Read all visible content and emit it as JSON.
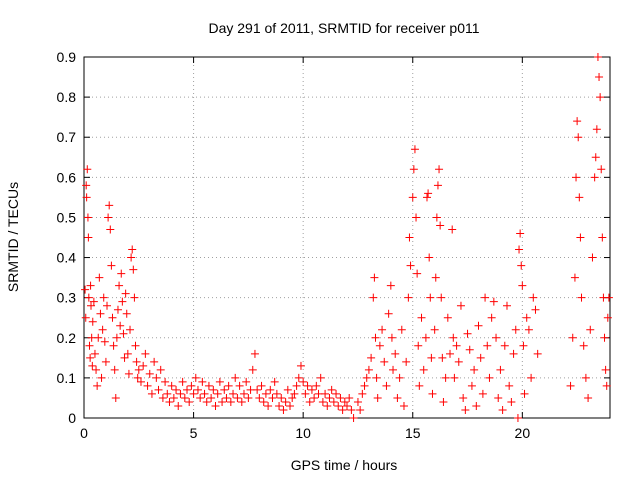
{
  "chart_data": {
    "type": "scatter",
    "title": "Day 291 of 2011, SRMTID for receiver p011",
    "xlabel": "GPS time / hours",
    "ylabel": "SRMTID / TECUs",
    "xlim": [
      0,
      24
    ],
    "ylim": [
      0,
      0.9
    ],
    "xticks": [
      0,
      5,
      10,
      15,
      20
    ],
    "yticks": [
      0,
      0.1,
      0.2,
      0.3,
      0.4,
      0.5,
      0.6,
      0.7,
      0.8,
      0.9
    ],
    "grid": true,
    "marker": "plus",
    "color": "#ff0000",
    "series": [
      {
        "name": "SRMTID",
        "points": [
          [
            0.05,
            0.32
          ],
          [
            0.08,
            0.25
          ],
          [
            0.1,
            0.58
          ],
          [
            0.12,
            0.55
          ],
          [
            0.15,
            0.62
          ],
          [
            0.18,
            0.5
          ],
          [
            0.2,
            0.45
          ],
          [
            0.22,
            0.3
          ],
          [
            0.25,
            0.18
          ],
          [
            0.28,
            0.15
          ],
          [
            0.3,
            0.33
          ],
          [
            0.32,
            0.28
          ],
          [
            0.35,
            0.2
          ],
          [
            0.38,
            0.13
          ],
          [
            0.4,
            0.24
          ],
          [
            0.45,
            0.29
          ],
          [
            0.5,
            0.16
          ],
          [
            0.55,
            0.12
          ],
          [
            0.6,
            0.08
          ],
          [
            0.65,
            0.2
          ],
          [
            0.7,
            0.35
          ],
          [
            0.75,
            0.26
          ],
          [
            0.8,
            0.1
          ],
          [
            0.85,
            0.22
          ],
          [
            0.9,
            0.3
          ],
          [
            0.95,
            0.19
          ],
          [
            1.0,
            0.14
          ],
          [
            1.05,
            0.28
          ],
          [
            1.1,
            0.5
          ],
          [
            1.15,
            0.53
          ],
          [
            1.2,
            0.47
          ],
          [
            1.25,
            0.38
          ],
          [
            1.3,
            0.25
          ],
          [
            1.35,
            0.18
          ],
          [
            1.4,
            0.12
          ],
          [
            1.45,
            0.05
          ],
          [
            1.5,
            0.2
          ],
          [
            1.55,
            0.27
          ],
          [
            1.6,
            0.33
          ],
          [
            1.65,
            0.23
          ],
          [
            1.7,
            0.36
          ],
          [
            1.75,
            0.29
          ],
          [
            1.8,
            0.21
          ],
          [
            1.85,
            0.15
          ],
          [
            1.9,
            0.31
          ],
          [
            1.95,
            0.26
          ],
          [
            2.0,
            0.16
          ],
          [
            2.05,
            0.11
          ],
          [
            2.1,
            0.22
          ],
          [
            2.15,
            0.4
          ],
          [
            2.2,
            0.42
          ],
          [
            2.25,
            0.37
          ],
          [
            2.3,
            0.3
          ],
          [
            2.35,
            0.18
          ],
          [
            2.4,
            0.14
          ],
          [
            2.45,
            0.1
          ],
          [
            2.5,
            0.12
          ],
          [
            2.6,
            0.09
          ],
          [
            2.7,
            0.13
          ],
          [
            2.8,
            0.16
          ],
          [
            2.9,
            0.08
          ],
          [
            3.0,
            0.11
          ],
          [
            3.1,
            0.06
          ],
          [
            3.2,
            0.14
          ],
          [
            3.3,
            0.1
          ],
          [
            3.4,
            0.07
          ],
          [
            3.5,
            0.12
          ],
          [
            3.6,
            0.05
          ],
          [
            3.7,
            0.09
          ],
          [
            3.8,
            0.06
          ],
          [
            3.9,
            0.04
          ],
          [
            4.0,
            0.08
          ],
          [
            4.1,
            0.05
          ],
          [
            4.2,
            0.07
          ],
          [
            4.3,
            0.03
          ],
          [
            4.4,
            0.06
          ],
          [
            4.5,
            0.09
          ],
          [
            4.6,
            0.05
          ],
          [
            4.7,
            0.07
          ],
          [
            4.8,
            0.04
          ],
          [
            4.9,
            0.08
          ],
          [
            5.0,
            0.06
          ],
          [
            5.1,
            0.1
          ],
          [
            5.2,
            0.07
          ],
          [
            5.3,
            0.05
          ],
          [
            5.4,
            0.09
          ],
          [
            5.5,
            0.06
          ],
          [
            5.6,
            0.04
          ],
          [
            5.7,
            0.08
          ],
          [
            5.8,
            0.05
          ],
          [
            5.9,
            0.07
          ],
          [
            6.0,
            0.03
          ],
          [
            6.1,
            0.06
          ],
          [
            6.2,
            0.09
          ],
          [
            6.3,
            0.04
          ],
          [
            6.4,
            0.07
          ],
          [
            6.5,
            0.05
          ],
          [
            6.6,
            0.08
          ],
          [
            6.7,
            0.04
          ],
          [
            6.8,
            0.06
          ],
          [
            6.9,
            0.1
          ],
          [
            7.0,
            0.05
          ],
          [
            7.1,
            0.08
          ],
          [
            7.2,
            0.04
          ],
          [
            7.3,
            0.06
          ],
          [
            7.4,
            0.09
          ],
          [
            7.5,
            0.05
          ],
          [
            7.6,
            0.07
          ],
          [
            7.7,
            0.12
          ],
          [
            7.8,
            0.16
          ],
          [
            7.9,
            0.07
          ],
          [
            8.0,
            0.05
          ],
          [
            8.1,
            0.08
          ],
          [
            8.2,
            0.04
          ],
          [
            8.3,
            0.06
          ],
          [
            8.4,
            0.03
          ],
          [
            8.5,
            0.07
          ],
          [
            8.6,
            0.05
          ],
          [
            8.7,
            0.09
          ],
          [
            8.8,
            0.06
          ],
          [
            8.9,
            0.03
          ],
          [
            9.0,
            0.05
          ],
          [
            9.1,
            0.02
          ],
          [
            9.2,
            0.04
          ],
          [
            9.3,
            0.07
          ],
          [
            9.4,
            0.03
          ],
          [
            9.5,
            0.05
          ],
          [
            9.6,
            0.06
          ],
          [
            9.7,
            0.08
          ],
          [
            9.8,
            0.1
          ],
          [
            9.9,
            0.13
          ],
          [
            10.0,
            0.09
          ],
          [
            10.1,
            0.06
          ],
          [
            10.2,
            0.08
          ],
          [
            10.3,
            0.04
          ],
          [
            10.4,
            0.07
          ],
          [
            10.5,
            0.05
          ],
          [
            10.6,
            0.08
          ],
          [
            10.7,
            0.06
          ],
          [
            10.8,
            0.1
          ],
          [
            10.9,
            0.04
          ],
          [
            11.0,
            0.06
          ],
          [
            11.1,
            0.03
          ],
          [
            11.2,
            0.05
          ],
          [
            11.3,
            0.07
          ],
          [
            11.4,
            0.04
          ],
          [
            11.5,
            0.06
          ],
          [
            11.6,
            0.03
          ],
          [
            11.7,
            0.05
          ],
          [
            11.8,
            0.02
          ],
          [
            11.9,
            0.04
          ],
          [
            12.0,
            0.03
          ],
          [
            12.1,
            0.05
          ],
          [
            12.2,
            0.02
          ],
          [
            12.3,
            0.0
          ],
          [
            12.5,
            0.04
          ],
          [
            12.6,
            0.02
          ],
          [
            12.7,
            0.06
          ],
          [
            12.8,
            0.08
          ],
          [
            12.9,
            0.1
          ],
          [
            13.0,
            0.12
          ],
          [
            13.1,
            0.15
          ],
          [
            13.2,
            0.3
          ],
          [
            13.25,
            0.35
          ],
          [
            13.3,
            0.2
          ],
          [
            13.35,
            0.1
          ],
          [
            13.4,
            0.05
          ],
          [
            13.5,
            0.18
          ],
          [
            13.6,
            0.22
          ],
          [
            13.7,
            0.14
          ],
          [
            13.8,
            0.08
          ],
          [
            13.9,
            0.26
          ],
          [
            14.0,
            0.33
          ],
          [
            14.05,
            0.2
          ],
          [
            14.1,
            0.12
          ],
          [
            14.2,
            0.16
          ],
          [
            14.3,
            0.05
          ],
          [
            14.4,
            0.1
          ],
          [
            14.5,
            0.22
          ],
          [
            14.6,
            0.03
          ],
          [
            14.7,
            0.14
          ],
          [
            14.8,
            0.3
          ],
          [
            14.85,
            0.45
          ],
          [
            14.9,
            0.38
          ],
          [
            15.0,
            0.55
          ],
          [
            15.05,
            0.62
          ],
          [
            15.1,
            0.67
          ],
          [
            15.15,
            0.5
          ],
          [
            15.2,
            0.36
          ],
          [
            15.25,
            0.18
          ],
          [
            15.3,
            0.08
          ],
          [
            15.4,
            0.25
          ],
          [
            15.5,
            0.12
          ],
          [
            15.6,
            0.2
          ],
          [
            15.65,
            0.55
          ],
          [
            15.7,
            0.56
          ],
          [
            15.75,
            0.4
          ],
          [
            15.8,
            0.3
          ],
          [
            15.85,
            0.15
          ],
          [
            15.9,
            0.06
          ],
          [
            16.0,
            0.22
          ],
          [
            16.05,
            0.35
          ],
          [
            16.1,
            0.5
          ],
          [
            16.15,
            0.58
          ],
          [
            16.2,
            0.62
          ],
          [
            16.25,
            0.48
          ],
          [
            16.3,
            0.3
          ],
          [
            16.35,
            0.15
          ],
          [
            16.4,
            0.04
          ],
          [
            16.5,
            0.1
          ],
          [
            16.6,
            0.25
          ],
          [
            16.7,
            0.16
          ],
          [
            16.8,
            0.47
          ],
          [
            16.85,
            0.2
          ],
          [
            16.9,
            0.1
          ],
          [
            17.0,
            0.18
          ],
          [
            17.1,
            0.14
          ],
          [
            17.2,
            0.28
          ],
          [
            17.3,
            0.05
          ],
          [
            17.4,
            0.02
          ],
          [
            17.5,
            0.21
          ],
          [
            17.6,
            0.17
          ],
          [
            17.7,
            0.08
          ],
          [
            17.8,
            0.12
          ],
          [
            17.9,
            0.03
          ],
          [
            18.0,
            0.23
          ],
          [
            18.1,
            0.15
          ],
          [
            18.2,
            0.06
          ],
          [
            18.3,
            0.3
          ],
          [
            18.4,
            0.18
          ],
          [
            18.5,
            0.1
          ],
          [
            18.6,
            0.25
          ],
          [
            18.7,
            0.29
          ],
          [
            18.8,
            0.2
          ],
          [
            18.9,
            0.05
          ],
          [
            19.0,
            0.12
          ],
          [
            19.1,
            0.02
          ],
          [
            19.2,
            0.18
          ],
          [
            19.3,
            0.28
          ],
          [
            19.4,
            0.08
          ],
          [
            19.5,
            0.04
          ],
          [
            19.6,
            0.16
          ],
          [
            19.7,
            0.22
          ],
          [
            19.8,
            0.0
          ],
          [
            19.85,
            0.42
          ],
          [
            19.9,
            0.46
          ],
          [
            19.95,
            0.38
          ],
          [
            20.0,
            0.33
          ],
          [
            20.05,
            0.18
          ],
          [
            20.1,
            0.06
          ],
          [
            20.2,
            0.25
          ],
          [
            20.3,
            0.22
          ],
          [
            20.4,
            0.1
          ],
          [
            20.5,
            0.3
          ],
          [
            20.6,
            0.27
          ],
          [
            20.7,
            0.16
          ],
          [
            22.2,
            0.08
          ],
          [
            22.3,
            0.2
          ],
          [
            22.4,
            0.35
          ],
          [
            22.45,
            0.6
          ],
          [
            22.5,
            0.74
          ],
          [
            22.55,
            0.7
          ],
          [
            22.6,
            0.55
          ],
          [
            22.65,
            0.45
          ],
          [
            22.7,
            0.3
          ],
          [
            22.8,
            0.18
          ],
          [
            22.9,
            0.1
          ],
          [
            23.0,
            0.05
          ],
          [
            23.1,
            0.22
          ],
          [
            23.2,
            0.4
          ],
          [
            23.3,
            0.6
          ],
          [
            23.35,
            0.65
          ],
          [
            23.4,
            0.72
          ],
          [
            23.45,
            0.9
          ],
          [
            23.5,
            0.85
          ],
          [
            23.55,
            0.8
          ],
          [
            23.6,
            0.62
          ],
          [
            23.65,
            0.45
          ],
          [
            23.7,
            0.3
          ],
          [
            23.75,
            0.2
          ],
          [
            23.8,
            0.12
          ],
          [
            23.85,
            0.08
          ],
          [
            23.9,
            0.25
          ],
          [
            23.95,
            0.3
          ]
        ]
      }
    ]
  }
}
